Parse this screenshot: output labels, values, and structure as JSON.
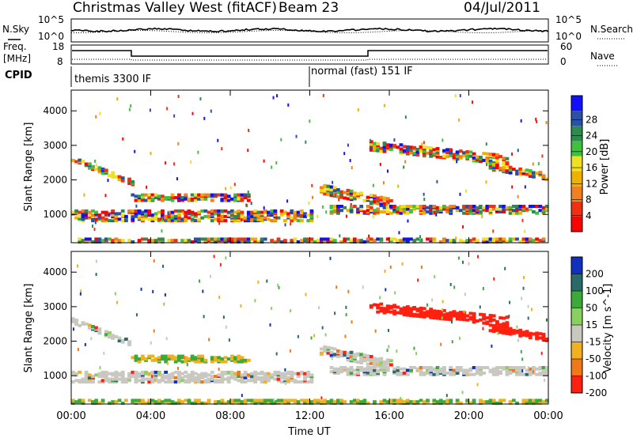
{
  "header": {
    "station": "Christmas Valley West (fitACF)",
    "beam": "Beam 23",
    "date": "04/Jul/2011"
  },
  "panels": {
    "nsky": {
      "label": "N.Sky",
      "yticks": [
        "10^5",
        "10^0"
      ],
      "right_label": "N.Search",
      "right_ticks": [
        "10^5",
        "10^0"
      ]
    },
    "freq": {
      "label_top": "Freq.",
      "label_bottom": "[MHz]",
      "yticks": [
        "18",
        "8"
      ],
      "right_label": "Nave",
      "right_ticks": [
        "60",
        "0"
      ]
    },
    "cpid": {
      "label": "CPID",
      "segments": [
        {
          "start": 0,
          "end": 12,
          "text": "themis 3300 IF"
        },
        {
          "start": 12,
          "end": 24,
          "text": "normal (fast) 151 IF"
        }
      ]
    }
  },
  "chart_data": [
    {
      "type": "heatmap",
      "name": "power",
      "ylabel": "Slant Range [km]",
      "yticks": [
        "1000",
        "2000",
        "3000",
        "4000"
      ],
      "ylim": [
        180,
        4600
      ],
      "colorbar_label": "Power [dB]",
      "colorbar_ticks": [
        "4",
        "8",
        "12",
        "16",
        "20",
        "24",
        "28"
      ],
      "colorbar_colors": [
        "#1010ff",
        "#2a50a8",
        "#2e8a4e",
        "#40bf40",
        "#f0e020",
        "#f0b000",
        "#f08020",
        "#f03010",
        "#ff0000"
      ]
    },
    {
      "type": "heatmap",
      "name": "velocity",
      "ylabel": "Slant Range [km]",
      "yticks": [
        "1000",
        "2000",
        "3000",
        "4000"
      ],
      "ylim": [
        180,
        4600
      ],
      "colorbar_label": "Velocity [m s^-1]",
      "colorbar_ticks": [
        "200",
        "100",
        "50",
        "15",
        "-15",
        "-50",
        "-100",
        "-200"
      ],
      "colorbar_colors": [
        "#1030c0",
        "#2a6a6a",
        "#3aaa3a",
        "#8ad060",
        "#c8c8c0",
        "#f0b020",
        "#f07818",
        "#ff2010"
      ]
    }
  ],
  "xaxis": {
    "ticks": [
      "00:00",
      "04:00",
      "08:00",
      "12:00",
      "16:00",
      "20:00",
      "00:00"
    ],
    "label": "Time UT"
  }
}
